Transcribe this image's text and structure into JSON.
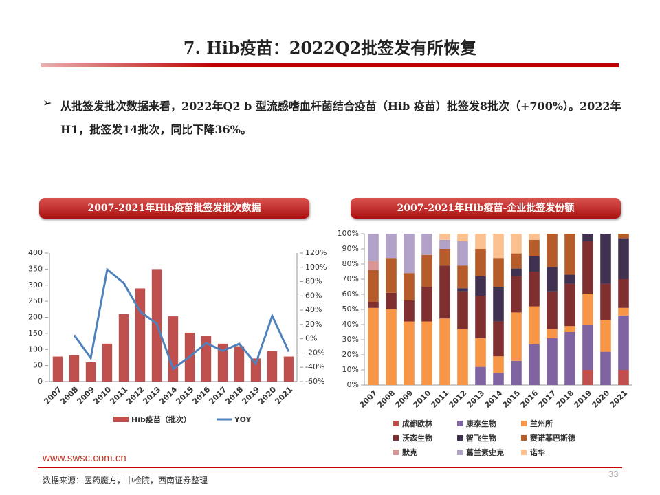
{
  "title": "7. Hib疫苗：2022Q2批签发有所恢复",
  "bullet": "从批签发批次数据来看，2022年Q2 b 型流感嗜血杆菌结合疫苗（Hib 疫苗）批签发8批次（+700%）。2022年H1，批签发14批次，同比下降36%。",
  "footer": {
    "site": "www.swsc.com.cn",
    "source": "数据来源：医药魔方，中检院，西南证券整理",
    "page": "33"
  },
  "chart_data": [
    {
      "type": "bar",
      "title": "2007-2021年Hib疫苗批签发批次数据",
      "categories": [
        "2007",
        "2008",
        "2009",
        "2010",
        "2011",
        "2012",
        "2013",
        "2014",
        "2015",
        "2016",
        "2017",
        "2018",
        "2019",
        "2020",
        "2021"
      ],
      "series": [
        {
          "name": "Hib疫苗（批次）",
          "color": "#c0504d",
          "type": "bar",
          "values": [
            78,
            82,
            60,
            118,
            210,
            290,
            350,
            203,
            152,
            143,
            118,
            110,
            72,
            95,
            78
          ]
        },
        {
          "name": "YOY",
          "color": "#4f81bd",
          "type": "line",
          "axis": "y2",
          "values": [
            null,
            5,
            -27,
            97,
            78,
            38,
            21,
            -42,
            -25,
            -6,
            -17,
            -7,
            -35,
            32,
            -18
          ]
        }
      ],
      "ylim": [
        0,
        400
      ],
      "yticks": [
        0,
        50,
        100,
        150,
        200,
        250,
        300,
        350,
        400
      ],
      "y2lim": [
        -60,
        120
      ],
      "y2ticks": [
        {
          "value": -60,
          "label": "-60%"
        },
        {
          "value": -40,
          "label": "-40%"
        },
        {
          "value": -20,
          "label": "-20%"
        },
        {
          "value": 0,
          "label": "0%"
        },
        {
          "value": 20,
          "label": "20%"
        },
        {
          "value": 40,
          "label": "40%"
        },
        {
          "value": 60,
          "label": "60%"
        },
        {
          "value": 80,
          "label": "80%"
        },
        {
          "value": 100,
          "label": "100%"
        },
        {
          "value": 120,
          "label": "120%"
        }
      ],
      "grid": false,
      "legend": "bottom"
    },
    {
      "type": "stacked_bar",
      "title": "2007-2021年Hib疫苗-企业批签发份额",
      "categories": [
        "2007",
        "2008",
        "2009",
        "2010",
        "2011",
        "2012",
        "2013",
        "2014",
        "2015",
        "2016",
        "2017",
        "2018",
        "2019",
        "2020",
        "2021"
      ],
      "series": [
        {
          "name": "成都欧林",
          "color": "#c0504d",
          "values": [
            0,
            0,
            0,
            0,
            0,
            0,
            0,
            0,
            0,
            0,
            0,
            0,
            10,
            0,
            10
          ]
        },
        {
          "name": "康泰生物",
          "color": "#8064a2",
          "values": [
            0,
            0,
            0,
            0,
            0,
            0,
            12,
            8,
            16,
            27,
            31,
            35,
            30,
            22,
            36
          ]
        },
        {
          "name": "兰州所",
          "color": "#f79646",
          "values": [
            51,
            50,
            42,
            42,
            44,
            37,
            19,
            11,
            32,
            25,
            6,
            4,
            20,
            21,
            5
          ]
        },
        {
          "name": "沃森生物",
          "color": "#7f2f2f",
          "values": [
            4,
            11,
            14,
            23,
            35,
            25,
            28,
            23,
            24,
            23,
            25,
            28,
            35,
            24,
            19
          ]
        },
        {
          "name": "智飞生物",
          "color": "#403151",
          "values": [
            0,
            0,
            0,
            0,
            0,
            2,
            13,
            23,
            5,
            10,
            16,
            6,
            5,
            33,
            27
          ]
        },
        {
          "name": "赛诺菲巴斯德",
          "color": "#b65c2a",
          "values": [
            21,
            23,
            18,
            21,
            11,
            15,
            18,
            19,
            10,
            11,
            22,
            27,
            0,
            0,
            3
          ]
        },
        {
          "name": "默克",
          "color": "#d99694",
          "values": [
            6,
            0,
            0,
            0,
            0,
            0,
            0,
            0,
            0,
            0,
            0,
            0,
            0,
            0,
            0
          ]
        },
        {
          "name": "葛兰素史克",
          "color": "#b3a2c7",
          "values": [
            18,
            16,
            26,
            14,
            6,
            16,
            0,
            0,
            0,
            0,
            0,
            0,
            0,
            0,
            0
          ]
        },
        {
          "name": "诺华",
          "color": "#fac090",
          "values": [
            0,
            0,
            0,
            0,
            4,
            5,
            10,
            16,
            13,
            4,
            0,
            0,
            0,
            0,
            0
          ]
        }
      ],
      "ylim": [
        0,
        100
      ],
      "yticks": [
        {
          "value": 0,
          "label": "0%"
        },
        {
          "value": 10,
          "label": "10%"
        },
        {
          "value": 20,
          "label": "20%"
        },
        {
          "value": 30,
          "label": "30%"
        },
        {
          "value": 40,
          "label": "40%"
        },
        {
          "value": 50,
          "label": "50%"
        },
        {
          "value": 60,
          "label": "60%"
        },
        {
          "value": 70,
          "label": "70%"
        },
        {
          "value": 80,
          "label": "80%"
        },
        {
          "value": 90,
          "label": "90%"
        },
        {
          "value": 100,
          "label": "100%"
        }
      ],
      "grid": false,
      "legend": "bottom"
    }
  ]
}
